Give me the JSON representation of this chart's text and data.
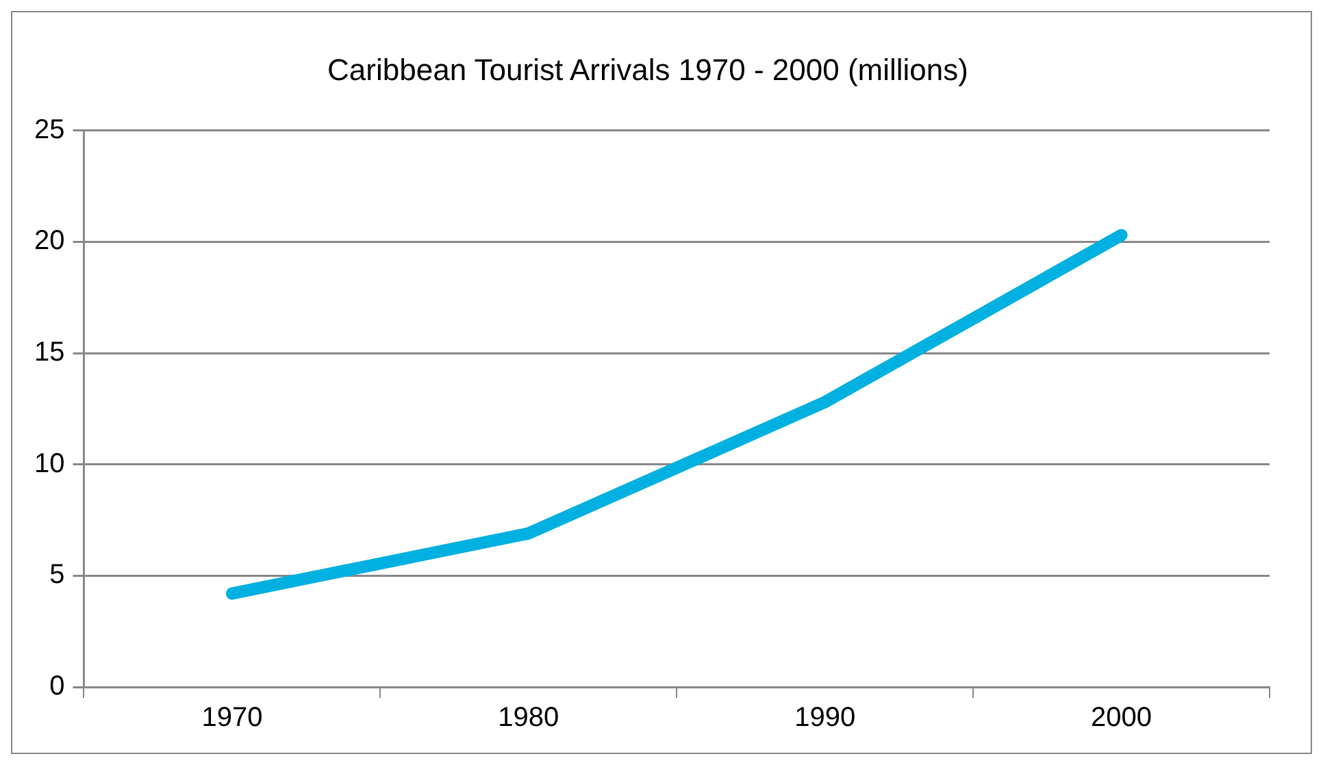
{
  "chart_data": {
    "type": "line",
    "title": "Caribbean Tourist Arrivals 1970 - 2000 (millions)",
    "categories": [
      "1970",
      "1980",
      "1990",
      "2000"
    ],
    "series": [
      {
        "color": "#00b0e0",
        "values": [
          4.2,
          6.9,
          12.8,
          20.3
        ]
      }
    ],
    "ylim": [
      0,
      25
    ],
    "yticks": [
      0,
      5,
      10,
      15,
      20,
      25
    ],
    "grid": "y",
    "legend": false,
    "marker": "none",
    "line_style": "solid"
  }
}
